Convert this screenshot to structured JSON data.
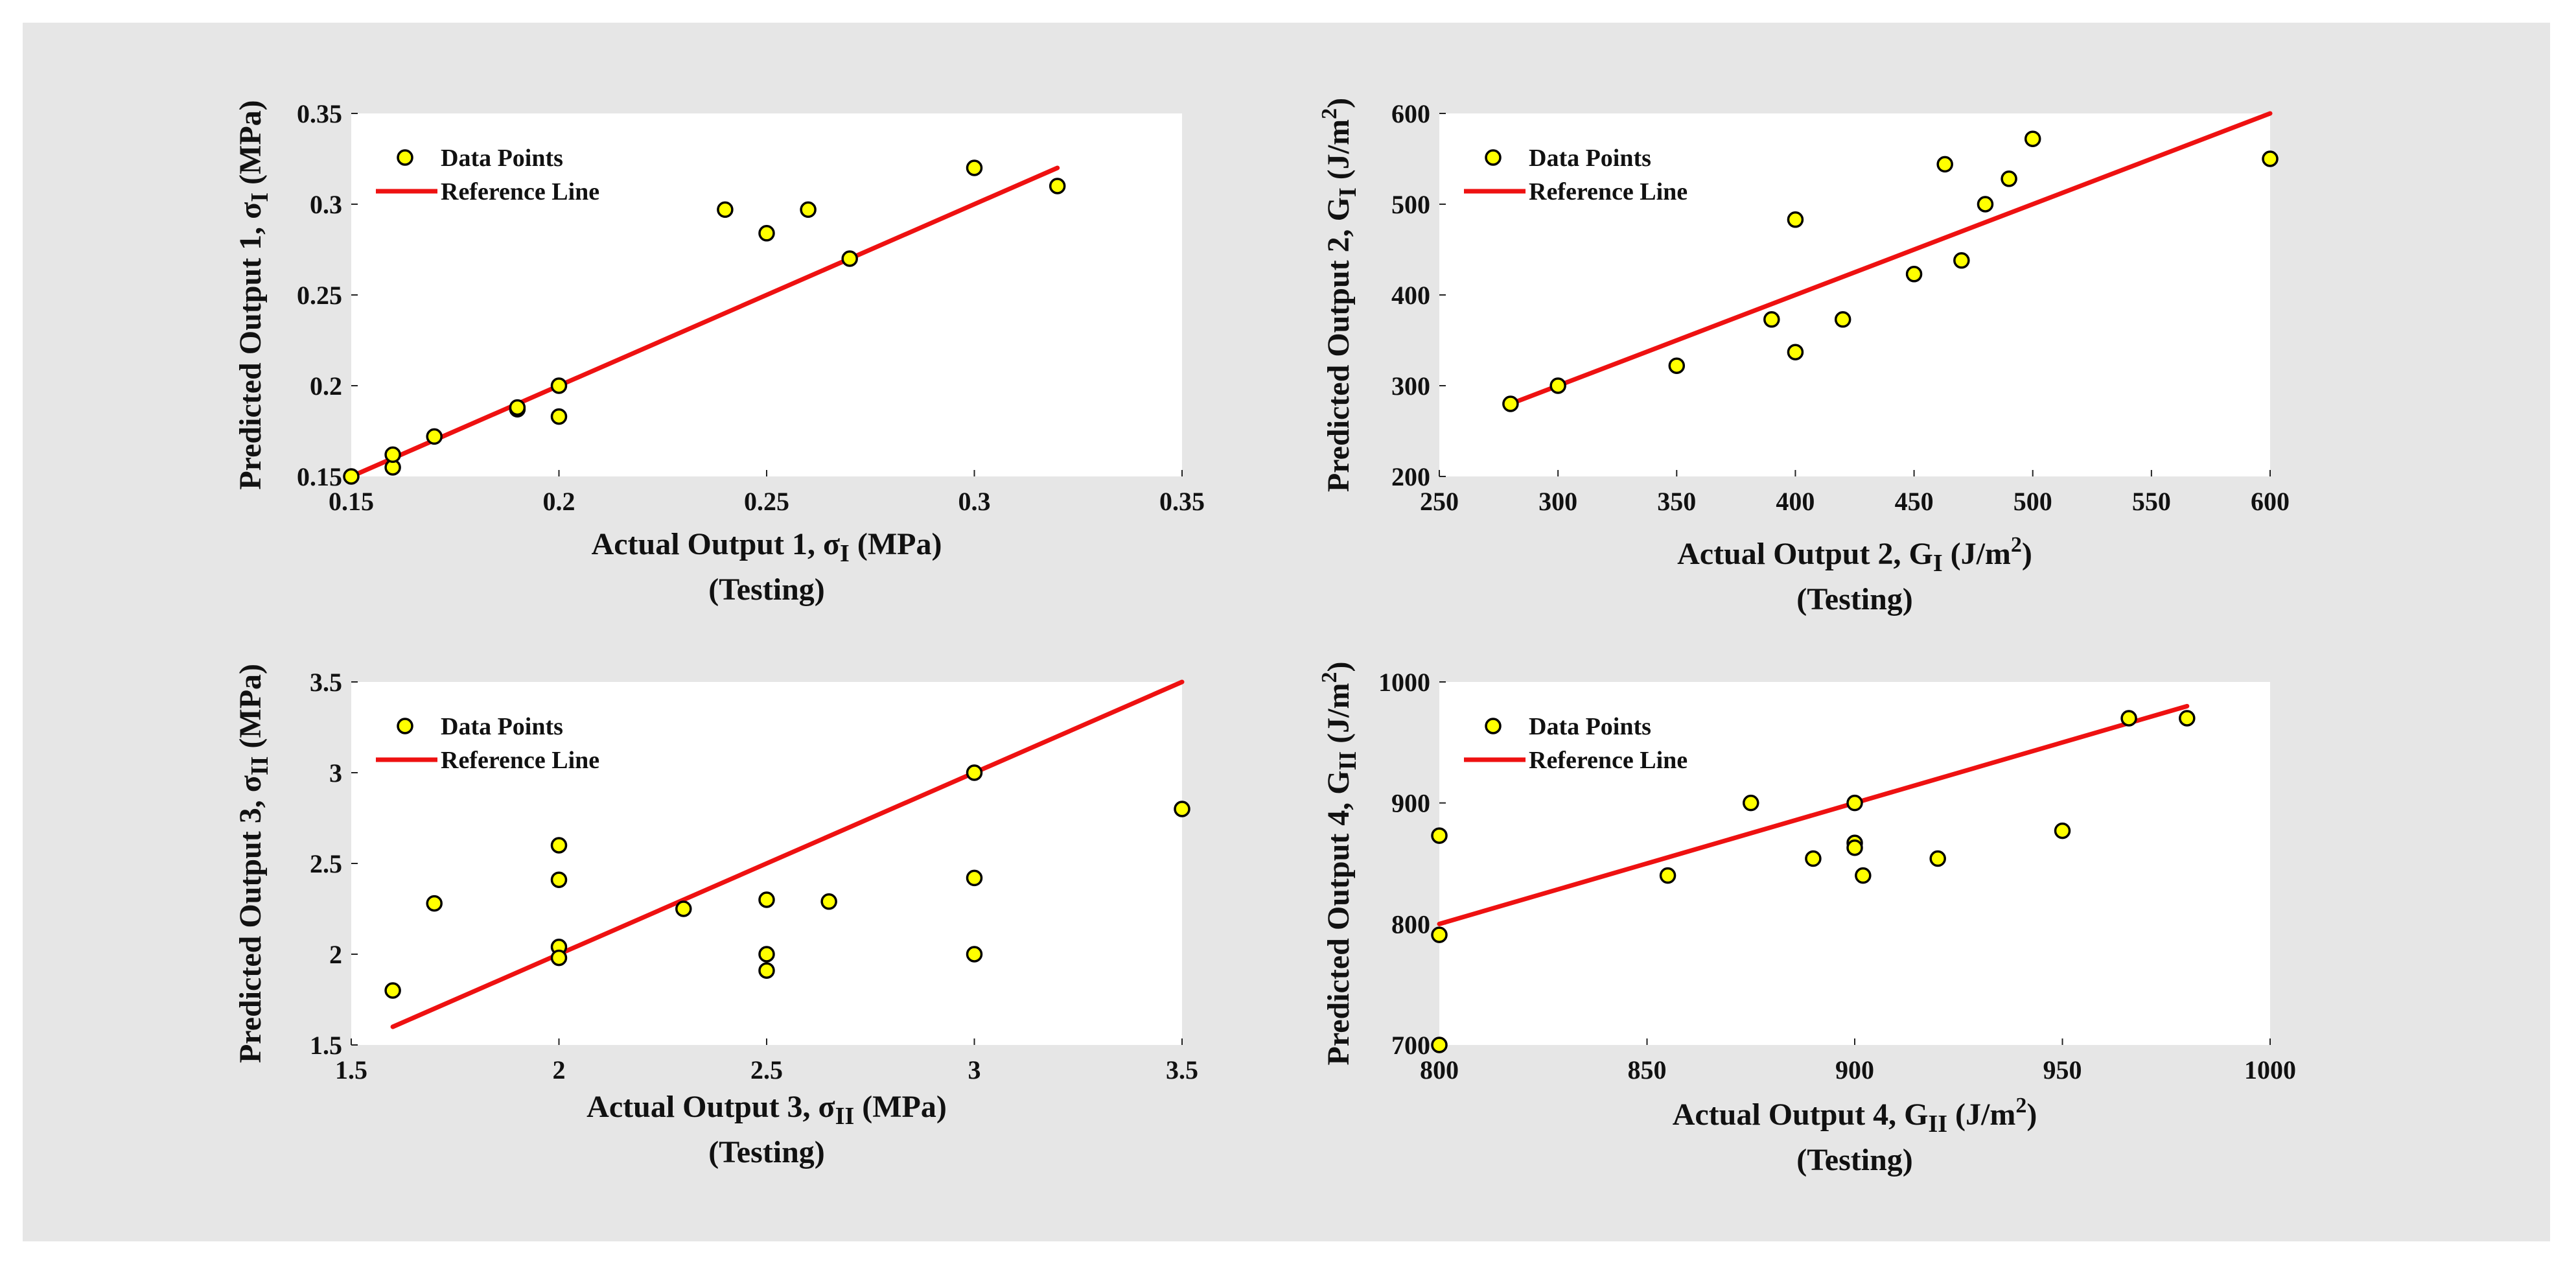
{
  "chart_data": [
    {
      "type": "scatter",
      "xlabel": {
        "main": "Actual Output 1, σ",
        "sub": "I",
        "unit": " (MPa)"
      },
      "ylabel": {
        "main": "Predicted Output 1, σ",
        "sub": "I",
        "unit": " (MPa)"
      },
      "caption": "(Testing)",
      "xlim": [
        0.15,
        0.35
      ],
      "ylim": [
        0.15,
        0.35
      ],
      "xticks": [
        0.15,
        0.2,
        0.25,
        0.3,
        0.35
      ],
      "yticks": [
        0.15,
        0.2,
        0.25,
        0.3,
        0.35
      ],
      "xtick_labels": [
        "0.15",
        "0.2",
        "0.25",
        "0.3",
        "0.35"
      ],
      "ytick_labels": [
        "0.15",
        "0.2",
        "0.25",
        "0.3",
        "0.35"
      ],
      "legend": {
        "points": "Data Points",
        "line": "Reference Line",
        "position": "top-left"
      },
      "reference_line": {
        "x": [
          0.15,
          0.32
        ],
        "y": [
          0.15,
          0.32
        ]
      },
      "points": [
        [
          0.15,
          0.15
        ],
        [
          0.16,
          0.155
        ],
        [
          0.16,
          0.162
        ],
        [
          0.17,
          0.172
        ],
        [
          0.19,
          0.187
        ],
        [
          0.19,
          0.188
        ],
        [
          0.2,
          0.2
        ],
        [
          0.2,
          0.183
        ],
        [
          0.24,
          0.297
        ],
        [
          0.25,
          0.284
        ],
        [
          0.26,
          0.297
        ],
        [
          0.27,
          0.27
        ],
        [
          0.3,
          0.32
        ],
        [
          0.32,
          0.31
        ]
      ]
    },
    {
      "type": "scatter",
      "xlabel": {
        "main": "Actual Output 2, G",
        "sub": "I",
        "unit": " (J/m",
        "sup": "2",
        "close": ")"
      },
      "ylabel": {
        "main": "Predicted Output 2, G",
        "sub": "I",
        "unit": " (J/m",
        "sup": "2",
        "close": ")"
      },
      "caption": "(Testing)",
      "xlim": [
        250,
        600
      ],
      "ylim": [
        200,
        600
      ],
      "xticks": [
        250,
        300,
        350,
        400,
        450,
        500,
        550,
        600
      ],
      "yticks": [
        200,
        300,
        400,
        500,
        600
      ],
      "xtick_labels": [
        "250",
        "300",
        "350",
        "400",
        "450",
        "500",
        "550",
        "600"
      ],
      "ytick_labels": [
        "200",
        "300",
        "400",
        "500",
        "600"
      ],
      "legend": {
        "points": "Data Points",
        "line": "Reference Line",
        "position": "top-left"
      },
      "reference_line": {
        "x": [
          280,
          600
        ],
        "y": [
          280,
          600
        ]
      },
      "points": [
        [
          280,
          280
        ],
        [
          300,
          300
        ],
        [
          350,
          322
        ],
        [
          390,
          373
        ],
        [
          400,
          337
        ],
        [
          400,
          483
        ],
        [
          420,
          373
        ],
        [
          450,
          423
        ],
        [
          463,
          544
        ],
        [
          470,
          438
        ],
        [
          480,
          500
        ],
        [
          490,
          528
        ],
        [
          500,
          572
        ],
        [
          600,
          550
        ]
      ]
    },
    {
      "type": "scatter",
      "xlabel": {
        "main": "Actual Output 3, σ",
        "sub": "II",
        "unit": " (MPa)"
      },
      "ylabel": {
        "main": "Predicted Output 3, σ",
        "sub": "II",
        "unit": " (MPa)"
      },
      "caption": "(Testing)",
      "xlim": [
        1.5,
        3.5
      ],
      "ylim": [
        1.5,
        3.5
      ],
      "xticks": [
        1.5,
        2,
        2.5,
        3,
        3.5
      ],
      "yticks": [
        1.5,
        2,
        2.5,
        3,
        3.5
      ],
      "xtick_labels": [
        "1.5",
        "2",
        "2.5",
        "3",
        "3.5"
      ],
      "ytick_labels": [
        "1.5",
        "2",
        "2.5",
        "3",
        "3.5"
      ],
      "legend": {
        "points": "Data Points",
        "line": "Reference Line",
        "position": "top-left"
      },
      "reference_line": {
        "x": [
          1.6,
          3.5
        ],
        "y": [
          1.6,
          3.5
        ]
      },
      "points": [
        [
          1.6,
          1.8
        ],
        [
          1.7,
          2.28
        ],
        [
          2.0,
          2.6
        ],
        [
          2.0,
          2.41
        ],
        [
          2.0,
          2.04
        ],
        [
          2.0,
          1.98
        ],
        [
          2.3,
          2.25
        ],
        [
          2.5,
          2.3
        ],
        [
          2.5,
          2.0
        ],
        [
          2.5,
          1.91
        ],
        [
          2.65,
          2.29
        ],
        [
          3.0,
          3.0
        ],
        [
          3.0,
          2.42
        ],
        [
          3.0,
          2.0
        ],
        [
          3.5,
          2.8
        ]
      ]
    },
    {
      "type": "scatter",
      "xlabel": {
        "main": "Actual Output 4, G",
        "sub": "II",
        "unit": " (J/m",
        "sup": "2",
        "close": ")"
      },
      "ylabel": {
        "main": "Predicted Output 4, G",
        "sub": "II",
        "unit": " (J/m",
        "sup": "2",
        "close": ")"
      },
      "caption": "(Testing)",
      "xlim": [
        800,
        1000
      ],
      "ylim": [
        700,
        1000
      ],
      "xticks": [
        800,
        850,
        900,
        950,
        1000
      ],
      "yticks": [
        700,
        800,
        900,
        1000
      ],
      "xtick_labels": [
        "800",
        "850",
        "900",
        "950",
        "1000"
      ],
      "ytick_labels": [
        "700",
        "800",
        "900",
        "1000"
      ],
      "legend": {
        "points": "Data Points",
        "line": "Reference Line",
        "position": "top-left"
      },
      "reference_line": {
        "x": [
          800,
          980
        ],
        "y": [
          800,
          980
        ]
      },
      "points": [
        [
          800,
          873
        ],
        [
          800,
          791
        ],
        [
          800,
          700
        ],
        [
          855,
          840
        ],
        [
          875,
          900
        ],
        [
          890,
          854
        ],
        [
          900,
          900
        ],
        [
          900,
          867
        ],
        [
          900,
          863
        ],
        [
          902,
          840
        ],
        [
          920,
          854
        ],
        [
          950,
          877
        ],
        [
          966,
          970
        ],
        [
          980,
          970
        ]
      ]
    }
  ],
  "colors": {
    "background": "#e6e6e6",
    "axes": "#ffffff",
    "point_fill": "#ffff00",
    "point_edge": "#000000",
    "reference_line": "#ee1111"
  }
}
